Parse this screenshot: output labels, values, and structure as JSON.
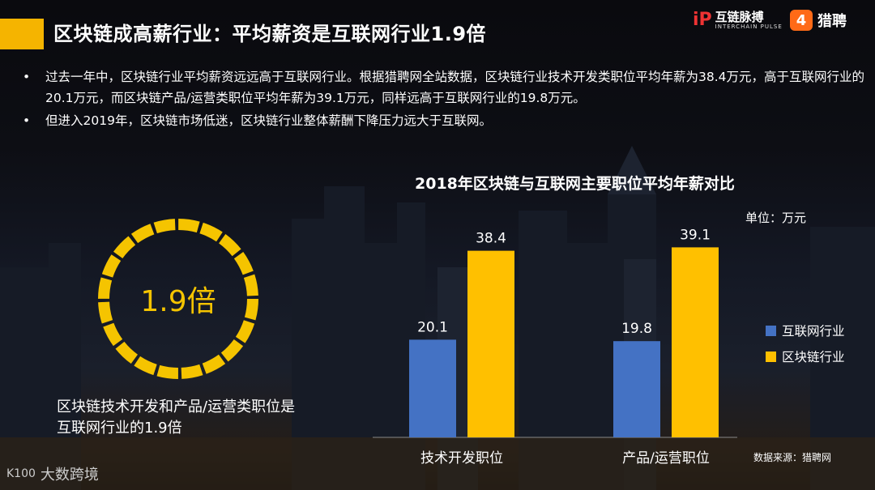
{
  "header": {
    "title": "区块链成高薪行业：平均薪资是互联网行业1.9倍",
    "brand_chain": "互链脉搏",
    "brand_chain_sub": "INTERCHAIN PULSE",
    "brand_liepin": "猎聘",
    "accent_color": "#f5b400"
  },
  "bullets": [
    "过去一年中，区块链行业平均薪资远远高于互联网行业。根据猎聘网全站数据，区块链行业技术开发类职位平均年薪为38.4万元，高于互联网行业的20.1万元，而区块链产品/运营类职位平均年薪为39.1万元，同样远高于互联网行业的19.8万元。",
    "但进入2019年，区块链市场低迷，区块链行业整体薪酬下降压力远大于互联网。"
  ],
  "ring": {
    "value": "1.9倍",
    "caption": "区块链技术开发和产品/运营类职位是互联网行业的1.9倍",
    "color": "#f5c400"
  },
  "chart_data": {
    "type": "bar",
    "title": "2018年区块链与互联网主要职位平均年薪对比",
    "unit": "单位：万元",
    "categories": [
      "技术开发职位",
      "产品/运营职位"
    ],
    "series": [
      {
        "name": "互联网行业",
        "values": [
          20.1,
          19.8
        ],
        "color": "#4472c4"
      },
      {
        "name": "区块链行业",
        "values": [
          38.4,
          39.1
        ],
        "color": "#ffc000"
      }
    ],
    "ylim": [
      0,
      40
    ],
    "grid": false,
    "legend": "right"
  },
  "source": "数据来源：猎聘网",
  "footer": {
    "logo": "大数跨境"
  }
}
